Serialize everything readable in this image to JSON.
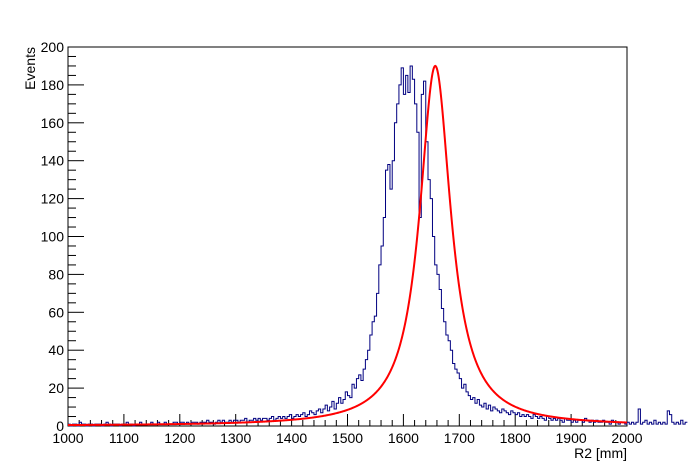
{
  "chart_data": {
    "type": "histogram",
    "title": "",
    "xlabel": "R2 [mm]",
    "ylabel": "Events",
    "xlim": [
      1000,
      2000
    ],
    "ylim": [
      0,
      200
    ],
    "grid": false,
    "legend": "none",
    "x_ticks": [
      1000,
      1100,
      1200,
      1300,
      1400,
      1500,
      1600,
      1700,
      1800,
      1900,
      2000
    ],
    "y_ticks": [
      0,
      20,
      40,
      60,
      80,
      100,
      120,
      140,
      160,
      180,
      200
    ],
    "series": [
      {
        "kind": "histogram",
        "color": "#000080",
        "bin_width": 4,
        "bin_start": 1000,
        "values": [
          1,
          0,
          1,
          1,
          0,
          2,
          1,
          1,
          0,
          1,
          1,
          0,
          1,
          1,
          1,
          0,
          1,
          2,
          1,
          0,
          1,
          1,
          1,
          0,
          1,
          1,
          2,
          1,
          1,
          0,
          1,
          1,
          2,
          1,
          1,
          1,
          1,
          2,
          1,
          1,
          2,
          1,
          1,
          2,
          1,
          1,
          1,
          2,
          2,
          1,
          2,
          2,
          1,
          2,
          1,
          2,
          2,
          2,
          1,
          2,
          2,
          2,
          3,
          2,
          2,
          1,
          2,
          3,
          2,
          3,
          2,
          2,
          3,
          2,
          3,
          3,
          2,
          3,
          3,
          4,
          2,
          3,
          3,
          4,
          3,
          4,
          3,
          4,
          4,
          3,
          4,
          5,
          3,
          4,
          5,
          4,
          5,
          4,
          5,
          6,
          4,
          5,
          6,
          5,
          6,
          7,
          5,
          6,
          8,
          7,
          6,
          8,
          9,
          7,
          9,
          11,
          8,
          10,
          13,
          9,
          12,
          15,
          12,
          14,
          18,
          16,
          15,
          22,
          20,
          25,
          27,
          24,
          30,
          35,
          40,
          48,
          55,
          58,
          70,
          85,
          95,
          110,
          135,
          138,
          125,
          140,
          160,
          170,
          180,
          189,
          175,
          185,
          176,
          190,
          183,
          170,
          155,
          110,
          175,
          182,
          150,
          130,
          120,
          100,
          85,
          80,
          72,
          62,
          55,
          48,
          45,
          40,
          33,
          30,
          28,
          25,
          20,
          22,
          18,
          16,
          14,
          15,
          12,
          14,
          11,
          10,
          12,
          9,
          11,
          8,
          10,
          9,
          8,
          7,
          9,
          8,
          7,
          6,
          8,
          7,
          6,
          7,
          5,
          6,
          5,
          6,
          5,
          4,
          6,
          5,
          4,
          5,
          4,
          3,
          5,
          4,
          3,
          4,
          3,
          4,
          3,
          2,
          4,
          3,
          3,
          2,
          3,
          2,
          3,
          3,
          2,
          4,
          3,
          2,
          3,
          2,
          3,
          2,
          2,
          3,
          2,
          2,
          1,
          3,
          2,
          2,
          1,
          2,
          2,
          1,
          2,
          1,
          2,
          1,
          2,
          9,
          1,
          2,
          3,
          1,
          2,
          1,
          3,
          1,
          2,
          1,
          2,
          1,
          8,
          6,
          2,
          1,
          2,
          1,
          3,
          1,
          2
        ]
      },
      {
        "kind": "fit",
        "color": "#ff0000",
        "function": "lorentzian",
        "amplitude": 190,
        "mean": 1657,
        "gamma": 34,
        "baseline": 0
      }
    ]
  }
}
